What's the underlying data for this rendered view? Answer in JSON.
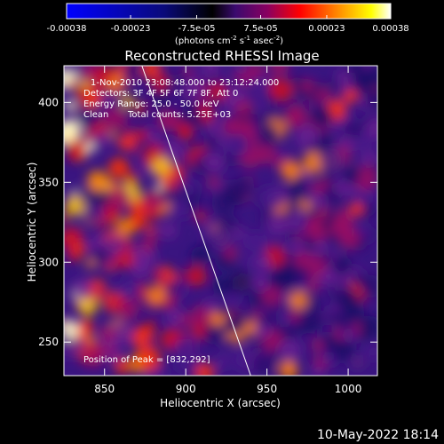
{
  "colorbar": {
    "tick_labels": [
      "-0.00038",
      "-0.00023",
      "-7.5e-05",
      "7.5e-05",
      "0.00023",
      "0.00038"
    ],
    "unit_text": "(photons cm",
    "unit_sup1": "-2",
    "unit_mid": " s",
    "unit_sup2": "-1",
    "unit_mid2": " asec",
    "unit_sup3": "-2",
    "unit_end": ")"
  },
  "chart_data": {
    "type": "heatmap",
    "title": "Reconstructed RHESSI Image",
    "xlabel": "Heliocentric X (arcsec)",
    "ylabel": "Heliocentric Y (arcsec)",
    "xlim": [
      825,
      1018
    ],
    "ylim": [
      229,
      423
    ],
    "x_ticks": [
      850,
      900,
      950,
      1000
    ],
    "y_ticks": [
      250,
      300,
      350,
      400
    ],
    "value_range": [
      -0.00038,
      0.00038
    ],
    "colormap": "blue-black-purple-red-orange-yellow-white",
    "limb_line": {
      "x": [
        873,
        940
      ],
      "y": [
        423,
        229
      ]
    },
    "annotations": [
      "1-Nov-2010 23:08:48.000 to 23:12:24.000",
      "Detectors: 3F 4F 5F 6F 7F 8F, Att 0",
      "Energy Range: 25.0 - 50.0 keV",
      "Clean",
      "Total counts: 5.25E+03",
      "Position of Peak = [832,292]"
    ],
    "peak_position": [
      832,
      292
    ]
  },
  "footer": {
    "timestamp": "10-May-2022 18:14"
  }
}
